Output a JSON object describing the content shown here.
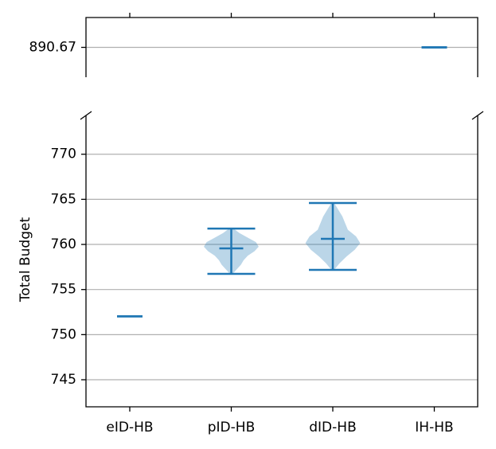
{
  "chart_data": {
    "type": "violin",
    "ylabel": "Total Budget",
    "categories": [
      "eID-HB",
      "pID-HB",
      "dID-HB",
      "IH-HB"
    ],
    "color": "#1f77b4",
    "violins": [
      {
        "min": 752.03,
        "max": 752.03,
        "mean": 752.03
      },
      {
        "min": 756.74,
        "max": 761.76,
        "mean": 759.56,
        "kde": [
          0.05,
          0.2,
          0.35,
          0.45,
          0.6,
          0.85,
          1.0,
          0.9,
          0.6,
          0.3,
          0.08
        ]
      },
      {
        "min": 757.18,
        "max": 764.59,
        "mean": 760.62,
        "kde": [
          0.05,
          0.25,
          0.5,
          0.8,
          1.0,
          0.85,
          0.55,
          0.45,
          0.35,
          0.2,
          0.05
        ]
      },
      {
        "min": 890.67,
        "max": 890.67,
        "mean": 890.67
      }
    ],
    "ylim": [
      742,
      774.3
    ],
    "yticks": [
      745,
      750,
      755,
      760,
      765,
      770
    ],
    "top_ylim": [
      890.17,
      891.17
    ],
    "top_yticks": [
      890.67
    ],
    "grid": true
  }
}
